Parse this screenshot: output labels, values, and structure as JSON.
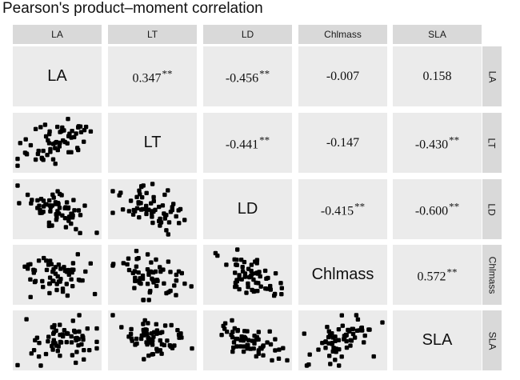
{
  "title": "Pearson's product–moment correlation",
  "variables": [
    "LA",
    "LT",
    "LD",
    "Chlmass",
    "SLA"
  ],
  "chart_data": {
    "type": "scatter-matrix",
    "title": "Pearson's product–moment correlation",
    "variables": [
      "LA",
      "LT",
      "LD",
      "Chlmass",
      "SLA"
    ],
    "diagonal_labels": [
      "LA",
      "LT",
      "LD",
      "Chlmass",
      "SLA"
    ],
    "correlations": [
      {
        "row": "LA",
        "col": "LT",
        "value": "0.347",
        "sig": "**"
      },
      {
        "row": "LA",
        "col": "LD",
        "value": "-0.456",
        "sig": "**"
      },
      {
        "row": "LA",
        "col": "Chlmass",
        "value": "-0.007",
        "sig": ""
      },
      {
        "row": "LA",
        "col": "SLA",
        "value": "0.158",
        "sig": ""
      },
      {
        "row": "LT",
        "col": "LD",
        "value": "-0.441",
        "sig": "**"
      },
      {
        "row": "LT",
        "col": "Chlmass",
        "value": "-0.147",
        "sig": ""
      },
      {
        "row": "LT",
        "col": "SLA",
        "value": "-0.430",
        "sig": "**"
      },
      {
        "row": "LD",
        "col": "Chlmass",
        "value": "-0.415",
        "sig": "**"
      },
      {
        "row": "LD",
        "col": "SLA",
        "value": "-0.600",
        "sig": "**"
      },
      {
        "row": "Chlmass",
        "col": "SLA",
        "value": "0.572",
        "sig": "**"
      }
    ],
    "scatter_panels": [
      {
        "row": "LT",
        "col": "LA",
        "r": 0.347
      },
      {
        "row": "LD",
        "col": "LA",
        "r": -0.456
      },
      {
        "row": "LD",
        "col": "LT",
        "r": -0.441
      },
      {
        "row": "Chlmass",
        "col": "LA",
        "r": -0.007
      },
      {
        "row": "Chlmass",
        "col": "LT",
        "r": -0.147
      },
      {
        "row": "Chlmass",
        "col": "LD",
        "r": -0.415
      },
      {
        "row": "SLA",
        "col": "LA",
        "r": 0.158
      },
      {
        "row": "SLA",
        "col": "LT",
        "r": -0.43
      },
      {
        "row": "SLA",
        "col": "LD",
        "r": -0.6
      },
      {
        "row": "SLA",
        "col": "Chlmass",
        "r": 0.572
      }
    ],
    "point_color": "#000000",
    "panel_background": "#ebebeb",
    "strip_background": "#d9d9d9"
  }
}
